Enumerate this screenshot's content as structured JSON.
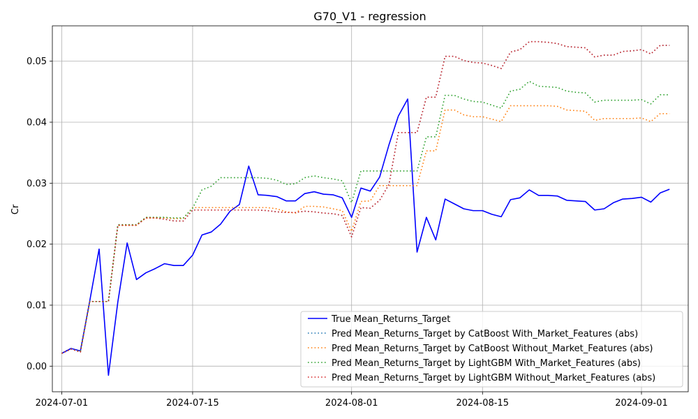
{
  "chart_data": {
    "type": "line",
    "title": "G70_V1 - regression",
    "xlabel": "",
    "ylabel": "Cr",
    "grid": true,
    "legend_position": "bottom-right",
    "ylim": [
      -0.0042,
      0.0558
    ],
    "xlim": [
      "2024-06-30",
      "2024-09-06"
    ],
    "x_ticks": [
      "2024-07-01",
      "2024-07-15",
      "2024-08-01",
      "2024-08-15",
      "2024-09-01"
    ],
    "y_ticks": [
      0.0,
      0.01,
      0.02,
      0.03,
      0.04,
      0.05
    ],
    "y_tick_labels": [
      "0.00",
      "0.01",
      "0.02",
      "0.03",
      "0.04",
      "0.05"
    ],
    "x": [
      "2024-07-01",
      "2024-07-02",
      "2024-07-03",
      "2024-07-04",
      "2024-07-05",
      "2024-07-06",
      "2024-07-07",
      "2024-07-08",
      "2024-07-09",
      "2024-07-10",
      "2024-07-11",
      "2024-07-12",
      "2024-07-13",
      "2024-07-14",
      "2024-07-15",
      "2024-07-16",
      "2024-07-17",
      "2024-07-18",
      "2024-07-19",
      "2024-07-20",
      "2024-07-21",
      "2024-07-22",
      "2024-07-23",
      "2024-07-24",
      "2024-07-25",
      "2024-07-26",
      "2024-07-27",
      "2024-07-28",
      "2024-07-29",
      "2024-07-30",
      "2024-07-31",
      "2024-08-01",
      "2024-08-02",
      "2024-08-03",
      "2024-08-04",
      "2024-08-05",
      "2024-08-06",
      "2024-08-07",
      "2024-08-08",
      "2024-08-09",
      "2024-08-10",
      "2024-08-11",
      "2024-08-12",
      "2024-08-13",
      "2024-08-14",
      "2024-08-15",
      "2024-08-16",
      "2024-08-17",
      "2024-08-18",
      "2024-08-19",
      "2024-08-20",
      "2024-08-21",
      "2024-08-22",
      "2024-08-23",
      "2024-08-24",
      "2024-08-25",
      "2024-08-26",
      "2024-08-27",
      "2024-08-28",
      "2024-08-29",
      "2024-08-30",
      "2024-08-31",
      "2024-09-01",
      "2024-09-02",
      "2024-09-03",
      "2024-09-04"
    ],
    "series": [
      {
        "name": "True Mean_Returns_Target",
        "color": "#0000ff",
        "style": "solid",
        "values": [
          0.0021,
          0.0029,
          0.0025,
          0.0107,
          0.0192,
          -0.0015,
          0.0105,
          0.0202,
          0.0142,
          0.0153,
          0.016,
          0.0168,
          0.0165,
          0.0165,
          0.0182,
          0.0215,
          0.022,
          0.0233,
          0.0254,
          0.0265,
          0.0328,
          0.0281,
          0.028,
          0.0278,
          0.0271,
          0.0271,
          0.0283,
          0.0286,
          0.0282,
          0.0281,
          0.0276,
          0.0244,
          0.0292,
          0.0287,
          0.031,
          0.0363,
          0.041,
          0.0438,
          0.0187,
          0.0244,
          0.0207,
          0.0274,
          0.0266,
          0.0258,
          0.0255,
          0.0255,
          0.0249,
          0.0245,
          0.0273,
          0.0276,
          0.0289,
          0.028,
          0.028,
          0.0279,
          0.0272,
          0.0271,
          0.027,
          0.0256,
          0.0258,
          0.0268,
          0.0274,
          0.0275,
          0.0277,
          0.0269,
          0.0284,
          0.029
        ]
      },
      {
        "name": "Pred Mean_Returns_Target by CatBoost With_Market_Features (abs)",
        "color": "#1f77b4",
        "style": "dotted",
        "values": [
          0.0021,
          0.0028,
          0.0023,
          0.0106,
          0.0106,
          0.0106,
          0.0231,
          0.0231,
          0.0231,
          0.0243,
          0.0243,
          0.0241,
          0.0238,
          0.0238,
          0.0256,
          0.0256,
          0.0256,
          0.0256,
          0.0256,
          0.0256,
          0.0256,
          0.0256,
          0.0255,
          0.0253,
          0.0252,
          0.0252,
          0.0254,
          0.0253,
          0.0251,
          0.025,
          0.0247,
          0.0212,
          0.026,
          0.0259,
          0.0272,
          0.0298,
          0.0383,
          0.0383,
          0.0383,
          0.0441,
          0.0441,
          0.0508,
          0.0508,
          0.0501,
          0.0498,
          0.0497,
          0.0493,
          0.0488,
          0.0515,
          0.0519,
          0.0532,
          0.0532,
          0.0531,
          0.0529,
          0.0524,
          0.0523,
          0.0522,
          0.0507,
          0.051,
          0.051,
          0.0516,
          0.0517,
          0.0519,
          0.0512,
          0.0526,
          0.0526
        ]
      },
      {
        "name": "Pred Mean_Returns_Target by CatBoost Without_Market_Features (abs)",
        "color": "#ff7f0e",
        "style": "dotted",
        "values": [
          0.0021,
          0.0028,
          0.0024,
          0.0106,
          0.0106,
          0.0106,
          0.0231,
          0.0231,
          0.0231,
          0.0243,
          0.0243,
          0.0243,
          0.0242,
          0.0242,
          0.026,
          0.026,
          0.026,
          0.026,
          0.026,
          0.026,
          0.026,
          0.026,
          0.026,
          0.0258,
          0.0253,
          0.0251,
          0.0262,
          0.0262,
          0.0261,
          0.0258,
          0.0255,
          0.0221,
          0.027,
          0.0271,
          0.0296,
          0.0296,
          0.0296,
          0.0296,
          0.0296,
          0.0353,
          0.0353,
          0.042,
          0.042,
          0.0412,
          0.0409,
          0.0409,
          0.0405,
          0.0401,
          0.0427,
          0.0427,
          0.0427,
          0.0427,
          0.0427,
          0.0426,
          0.042,
          0.0419,
          0.0418,
          0.0403,
          0.0406,
          0.0406,
          0.0406,
          0.0406,
          0.0407,
          0.0401,
          0.0414,
          0.0414
        ]
      },
      {
        "name": "Pred Mean_Returns_Target by LightGBM With_Market_Features (abs)",
        "color": "#2ca02c",
        "style": "dotted",
        "values": [
          0.0021,
          0.0028,
          0.0024,
          0.0106,
          0.0106,
          0.0106,
          0.0232,
          0.0232,
          0.0232,
          0.0244,
          0.0244,
          0.0244,
          0.0243,
          0.0243,
          0.0259,
          0.0289,
          0.0295,
          0.0309,
          0.0309,
          0.0309,
          0.0309,
          0.0309,
          0.0308,
          0.0305,
          0.0298,
          0.0299,
          0.0309,
          0.0312,
          0.0309,
          0.0307,
          0.0304,
          0.0268,
          0.032,
          0.032,
          0.032,
          0.032,
          0.032,
          0.032,
          0.032,
          0.0376,
          0.0376,
          0.0444,
          0.0444,
          0.0438,
          0.0434,
          0.0433,
          0.0428,
          0.0423,
          0.0451,
          0.0454,
          0.0467,
          0.0459,
          0.0458,
          0.0457,
          0.0451,
          0.0449,
          0.0448,
          0.0433,
          0.0436,
          0.0436,
          0.0436,
          0.0436,
          0.0437,
          0.043,
          0.0445,
          0.0445
        ]
      },
      {
        "name": "Pred Mean_Returns_Target by LightGBM Without_Market_Features (abs)",
        "color": "#d62728",
        "style": "dotted",
        "values": [
          0.0021,
          0.0028,
          0.0023,
          0.0106,
          0.0106,
          0.0106,
          0.0231,
          0.0231,
          0.0231,
          0.0243,
          0.0243,
          0.0241,
          0.0238,
          0.0238,
          0.0256,
          0.0256,
          0.0256,
          0.0256,
          0.0256,
          0.0256,
          0.0256,
          0.0256,
          0.0255,
          0.0253,
          0.0252,
          0.0252,
          0.0254,
          0.0253,
          0.0251,
          0.025,
          0.0247,
          0.0212,
          0.026,
          0.0259,
          0.0272,
          0.0298,
          0.0383,
          0.0383,
          0.0383,
          0.0441,
          0.0441,
          0.0508,
          0.0508,
          0.0501,
          0.0498,
          0.0497,
          0.0493,
          0.0488,
          0.0515,
          0.0519,
          0.0532,
          0.0532,
          0.0531,
          0.0529,
          0.0524,
          0.0523,
          0.0522,
          0.0507,
          0.051,
          0.051,
          0.0516,
          0.0517,
          0.0519,
          0.0512,
          0.0526,
          0.0526
        ]
      }
    ]
  }
}
